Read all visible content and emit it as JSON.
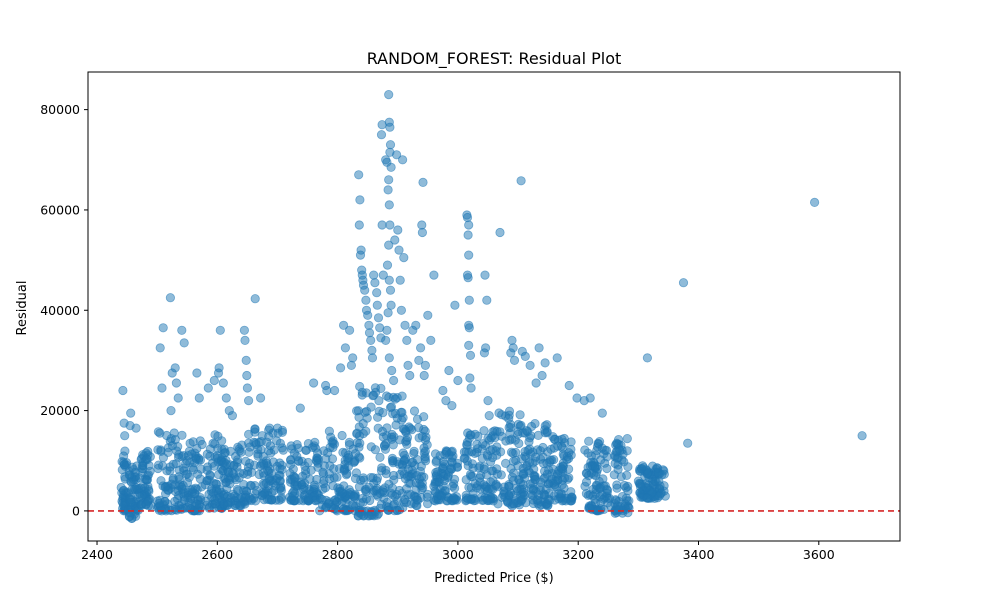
{
  "chart_data": {
    "type": "scatter",
    "title": "RANDOM_FOREST: Residual Plot",
    "xlabel": "Predicted Price ($)",
    "ylabel": "Residual",
    "xlim": [
      2385,
      3735
    ],
    "ylim": [
      -6000,
      87500
    ],
    "xticks": [
      2400,
      2600,
      2800,
      3000,
      3200,
      3400,
      3600
    ],
    "yticks": [
      0,
      20000,
      40000,
      60000,
      80000
    ],
    "grid": false,
    "reference_line": {
      "y": 0,
      "style": "dashed",
      "color": "#d62728"
    },
    "marker_color": "#1f77b4",
    "marker_alpha": 0.5,
    "clusters": [
      {
        "x_min": 2440,
        "x_max": 2450,
        "y_min": 0,
        "y_max": 12000
      },
      {
        "x_min": 2452,
        "x_max": 2470,
        "y_min": -1500,
        "y_max": 9000
      },
      {
        "x_min": 2470,
        "x_max": 2490,
        "y_min": 1000,
        "y_max": 12000
      },
      {
        "x_min": 2500,
        "x_max": 2545,
        "y_min": 0,
        "y_max": 16000
      },
      {
        "x_min": 2545,
        "x_max": 2575,
        "y_min": 0,
        "y_max": 14000
      },
      {
        "x_min": 2580,
        "x_max": 2610,
        "y_min": 500,
        "y_max": 16000
      },
      {
        "x_min": 2610,
        "x_max": 2650,
        "y_min": 1000,
        "y_max": 14000
      },
      {
        "x_min": 2650,
        "x_max": 2710,
        "y_min": 2000,
        "y_max": 17000
      },
      {
        "x_min": 2720,
        "x_max": 2770,
        "y_min": 2000,
        "y_max": 14000
      },
      {
        "x_min": 2770,
        "x_max": 2830,
        "y_min": 0,
        "y_max": 16000
      },
      {
        "x_min": 2830,
        "x_max": 2870,
        "y_min": -1000,
        "y_max": 25000
      },
      {
        "x_min": 2870,
        "x_max": 2910,
        "y_min": 0,
        "y_max": 25000
      },
      {
        "x_min": 2910,
        "x_max": 2950,
        "y_min": 1000,
        "y_max": 20000
      },
      {
        "x_min": 2960,
        "x_max": 3000,
        "y_min": 2000,
        "y_max": 12000
      },
      {
        "x_min": 3010,
        "x_max": 3060,
        "y_min": 2000,
        "y_max": 16000
      },
      {
        "x_min": 3060,
        "x_max": 3110,
        "y_min": 1000,
        "y_max": 20000
      },
      {
        "x_min": 3110,
        "x_max": 3150,
        "y_min": 1000,
        "y_max": 18000
      },
      {
        "x_min": 3150,
        "x_max": 3190,
        "y_min": 2000,
        "y_max": 15000
      },
      {
        "x_min": 3210,
        "x_max": 3250,
        "y_min": 0,
        "y_max": 14000
      },
      {
        "x_min": 3260,
        "x_max": 3285,
        "y_min": -500,
        "y_max": 14500
      },
      {
        "x_min": 3300,
        "x_max": 3345,
        "y_min": 2500,
        "y_max": 9000
      }
    ],
    "points": [
      [
        2443,
        24000
      ],
      [
        2445,
        17500
      ],
      [
        2446,
        15000
      ],
      [
        2456,
        19500
      ],
      [
        2455,
        17000
      ],
      [
        2465,
        16500
      ],
      [
        2505,
        32500
      ],
      [
        2510,
        36500
      ],
      [
        2508,
        24500
      ],
      [
        2522,
        42500
      ],
      [
        2525,
        27500
      ],
      [
        2530,
        28500
      ],
      [
        2532,
        25500
      ],
      [
        2545,
        33500
      ],
      [
        2535,
        22500
      ],
      [
        2541,
        36000
      ],
      [
        2523,
        20000
      ],
      [
        2566,
        27500
      ],
      [
        2570,
        22500
      ],
      [
        2585,
        24500
      ],
      [
        2595,
        26000
      ],
      [
        2602,
        27500
      ],
      [
        2603,
        28500
      ],
      [
        2605,
        36000
      ],
      [
        2610,
        25500
      ],
      [
        2615,
        22500
      ],
      [
        2620,
        20000
      ],
      [
        2625,
        19000
      ],
      [
        2645,
        36000
      ],
      [
        2646,
        34000
      ],
      [
        2648,
        30000
      ],
      [
        2649,
        27000
      ],
      [
        2650,
        24500
      ],
      [
        2652,
        22000
      ],
      [
        2663,
        42300
      ],
      [
        2672,
        22500
      ],
      [
        2687,
        16500
      ],
      [
        2700,
        16500
      ],
      [
        2701,
        15500
      ],
      [
        2738,
        20500
      ],
      [
        2760,
        25500
      ],
      [
        2780,
        25000
      ],
      [
        2782,
        24000
      ],
      [
        2795,
        24000
      ],
      [
        2805,
        28500
      ],
      [
        2810,
        37000
      ],
      [
        2813,
        32500
      ],
      [
        2820,
        36000
      ],
      [
        2823,
        29000
      ],
      [
        2825,
        30500
      ],
      [
        2835,
        67000
      ],
      [
        2837,
        62000
      ],
      [
        2836,
        57000
      ],
      [
        2839,
        52000
      ],
      [
        2838,
        51000
      ],
      [
        2840,
        48000
      ],
      [
        2841,
        47000
      ],
      [
        2842,
        46000
      ],
      [
        2843,
        45000
      ],
      [
        2845,
        44000
      ],
      [
        2847,
        42000
      ],
      [
        2848,
        40000
      ],
      [
        2850,
        39000
      ],
      [
        2852,
        37000
      ],
      [
        2853,
        35500
      ],
      [
        2855,
        34000
      ],
      [
        2857,
        32000
      ],
      [
        2858,
        30500
      ],
      [
        2860,
        47000
      ],
      [
        2862,
        45500
      ],
      [
        2865,
        43500
      ],
      [
        2866,
        41000
      ],
      [
        2868,
        38500
      ],
      [
        2870,
        36500
      ],
      [
        2872,
        34500
      ],
      [
        2874,
        57000
      ],
      [
        2876,
        47000
      ],
      [
        2873,
        75000
      ],
      [
        2874,
        77000
      ],
      [
        2880,
        70000
      ],
      [
        2882,
        69500
      ],
      [
        2885,
        83000
      ],
      [
        2886,
        77500
      ],
      [
        2887,
        76500
      ],
      [
        2888,
        73000
      ],
      [
        2887,
        71500
      ],
      [
        2889,
        68500
      ],
      [
        2885,
        66000
      ],
      [
        2884,
        64000
      ],
      [
        2886,
        61000
      ],
      [
        2887,
        57000
      ],
      [
        2885,
        53000
      ],
      [
        2883,
        49000
      ],
      [
        2886,
        46000
      ],
      [
        2888,
        44000
      ],
      [
        2889,
        41000
      ],
      [
        2884,
        39500
      ],
      [
        2882,
        36000
      ],
      [
        2880,
        34000
      ],
      [
        2886,
        30500
      ],
      [
        2890,
        28000
      ],
      [
        2893,
        26000
      ],
      [
        2898,
        71000
      ],
      [
        2895,
        54000
      ],
      [
        2900,
        56000
      ],
      [
        2902,
        52000
      ],
      [
        2904,
        46000
      ],
      [
        2906,
        40000
      ],
      [
        2908,
        70000
      ],
      [
        2910,
        50500
      ],
      [
        2912,
        37000
      ],
      [
        2915,
        34000
      ],
      [
        2917,
        29000
      ],
      [
        2920,
        27000
      ],
      [
        2925,
        36000
      ],
      [
        2930,
        37000
      ],
      [
        2935,
        30000
      ],
      [
        2938,
        32500
      ],
      [
        2940,
        57000
      ],
      [
        2941,
        55500
      ],
      [
        2942,
        65500
      ],
      [
        2944,
        27000
      ],
      [
        2946,
        29000
      ],
      [
        2950,
        39000
      ],
      [
        2955,
        34000
      ],
      [
        2960,
        47000
      ],
      [
        2975,
        24000
      ],
      [
        2980,
        22000
      ],
      [
        2985,
        28000
      ],
      [
        2990,
        21000
      ],
      [
        2995,
        41000
      ],
      [
        3000,
        26000
      ],
      [
        3015,
        59000
      ],
      [
        3016,
        58500
      ],
      [
        3018,
        57000
      ],
      [
        3017,
        55000
      ],
      [
        3018,
        51000
      ],
      [
        3016,
        47000
      ],
      [
        3017,
        46500
      ],
      [
        3019,
        42000
      ],
      [
        3018,
        37000
      ],
      [
        3019,
        36500
      ],
      [
        3018,
        33000
      ],
      [
        3021,
        31000
      ],
      [
        3020,
        26500
      ],
      [
        3022,
        24500
      ],
      [
        3045,
        47000
      ],
      [
        3048,
        42000
      ],
      [
        3046,
        32500
      ],
      [
        3044,
        31500
      ],
      [
        3050,
        22000
      ],
      [
        3052,
        19000
      ],
      [
        3070,
        55500
      ],
      [
        3090,
        34000
      ],
      [
        3092,
        32500
      ],
      [
        3088,
        31500
      ],
      [
        3094,
        30000
      ],
      [
        3105,
        65800
      ],
      [
        3107,
        31800
      ],
      [
        3112,
        30800
      ],
      [
        3120,
        29000
      ],
      [
        3130,
        25500
      ],
      [
        3135,
        32500
      ],
      [
        3140,
        27000
      ],
      [
        3145,
        29500
      ],
      [
        3165,
        30500
      ],
      [
        3185,
        25000
      ],
      [
        3198,
        22500
      ],
      [
        3210,
        22000
      ],
      [
        3220,
        22500
      ],
      [
        3240,
        19500
      ],
      [
        3315,
        30500
      ],
      [
        3375,
        45500
      ],
      [
        3382,
        13500
      ],
      [
        3593,
        61500
      ],
      [
        3672,
        15000
      ],
      [
        3228,
        9000
      ],
      [
        3229,
        7000
      ],
      [
        3245,
        5000
      ],
      [
        3248,
        3500
      ],
      [
        3252,
        2500
      ],
      [
        3254,
        1000
      ],
      [
        3332,
        8500
      ],
      [
        3333,
        7500
      ],
      [
        3334,
        6000
      ],
      [
        3335,
        3000
      ],
      [
        3336,
        5000
      ],
      [
        3302,
        8000
      ],
      [
        3307,
        9000
      ]
    ]
  }
}
